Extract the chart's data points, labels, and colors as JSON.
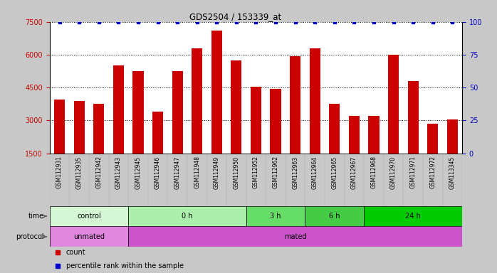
{
  "title": "GDS2504 / 153339_at",
  "samples": [
    "GSM112931",
    "GSM112935",
    "GSM112942",
    "GSM112943",
    "GSM112945",
    "GSM112946",
    "GSM112947",
    "GSM112948",
    "GSM112949",
    "GSM112950",
    "GSM112952",
    "GSM112962",
    "GSM112963",
    "GSM112964",
    "GSM112965",
    "GSM112967",
    "GSM112968",
    "GSM112970",
    "GSM112971",
    "GSM112972",
    "GSM113345"
  ],
  "counts": [
    3950,
    3900,
    3750,
    5500,
    5250,
    3400,
    5250,
    6300,
    7100,
    5750,
    4550,
    4450,
    5950,
    6300,
    3750,
    3200,
    3200,
    6000,
    4800,
    2850,
    3050
  ],
  "bar_color": "#cc0000",
  "percentile_color": "#0000cc",
  "ylim_left": [
    1500,
    7500
  ],
  "yticks_left": [
    1500,
    3000,
    4500,
    6000,
    7500
  ],
  "ylim_right": [
    0,
    100
  ],
  "yticks_right": [
    0,
    25,
    50,
    75,
    100
  ],
  "grid_yticks": [
    3000,
    4500,
    6000,
    7500
  ],
  "time_groups": [
    {
      "label": "control",
      "start": 0,
      "end": 4,
      "color": "#d4f7d4"
    },
    {
      "label": "0 h",
      "start": 4,
      "end": 10,
      "color": "#aaf0aa"
    },
    {
      "label": "3 h",
      "start": 10,
      "end": 13,
      "color": "#66dd66"
    },
    {
      "label": "6 h",
      "start": 13,
      "end": 16,
      "color": "#44cc44"
    },
    {
      "label": "24 h",
      "start": 16,
      "end": 21,
      "color": "#00cc00"
    }
  ],
  "protocol_groups": [
    {
      "label": "unmated",
      "start": 0,
      "end": 4,
      "color": "#e088e0"
    },
    {
      "label": "mated",
      "start": 4,
      "end": 21,
      "color": "#cc55cc"
    }
  ],
  "fig_bg": "#c8c8c8",
  "plot_bg": "#ffffff",
  "xtick_bg": "#d8d8d8"
}
